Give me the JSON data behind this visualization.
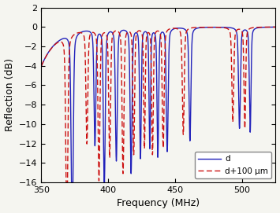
{
  "xlabel": "Frequency (MHz)",
  "ylabel": "Reflection (dB)",
  "xlim": [
    350,
    525
  ],
  "ylim": [
    -16,
    2
  ],
  "yticks": [
    2,
    0,
    -2,
    -4,
    -6,
    -8,
    -10,
    -12,
    -14,
    -16
  ],
  "xticks": [
    350,
    400,
    450,
    500
  ],
  "legend_labels": [
    "d",
    "d+100 μm"
  ],
  "line1_color": "#2222bb",
  "line2_color": "#cc1111",
  "background_color": "#f5f5f0",
  "figsize": [
    3.55,
    2.71
  ],
  "dpi": 100,
  "blue_resonances": [
    373,
    390,
    397,
    406,
    417,
    424,
    431,
    437,
    444,
    461,
    498,
    506
  ],
  "blue_depths": [
    -15.8,
    -9.2,
    -12.5,
    -10.5,
    -11.5,
    -10.3,
    -9.5,
    -10.2,
    -9.8,
    -9.0,
    -8.0,
    -8.3
  ],
  "blue_widths": [
    2.8,
    2.5,
    2.5,
    2.5,
    2.5,
    2.2,
    2.0,
    2.2,
    2.5,
    2.5,
    2.5,
    2.2
  ],
  "red_resonances": [
    369,
    384,
    393,
    401,
    411,
    419,
    427,
    433,
    441,
    456,
    493,
    502
  ],
  "red_depths": [
    -14.8,
    -9.0,
    -12.0,
    -10.2,
    -11.5,
    -10.0,
    -9.5,
    -10.0,
    -9.5,
    -8.5,
    -7.5,
    -8.0
  ],
  "red_widths": [
    2.8,
    2.5,
    2.5,
    2.5,
    2.5,
    2.2,
    2.0,
    2.2,
    2.5,
    2.5,
    2.5,
    2.2
  ]
}
